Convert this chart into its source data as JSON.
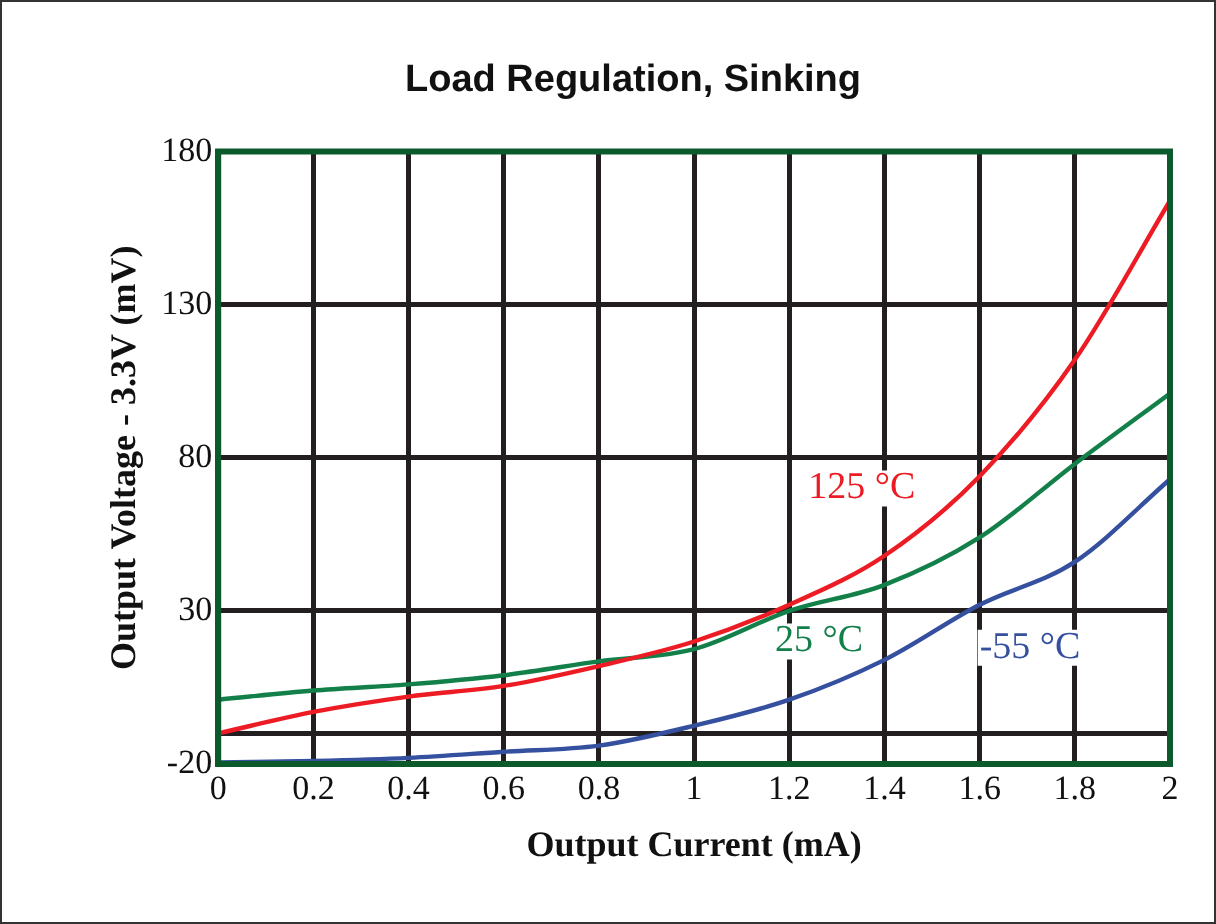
{
  "chart_data": {
    "type": "line",
    "title": "Load Regulation, Sinking",
    "xlabel": "Output Current (mA)",
    "ylabel": "Output Voltage - 3.3V (mV)",
    "x": [
      0,
      0.2,
      0.4,
      0.6,
      0.8,
      1.0,
      1.2,
      1.4,
      1.6,
      1.8,
      2.0
    ],
    "series": [
      {
        "name": "125 °C",
        "color": "#ed1c24",
        "values": [
          -10,
          -3,
          2,
          5.5,
          12,
          20,
          32,
          48,
          74,
          112,
          164
        ]
      },
      {
        "name": "25 °C",
        "color": "#13804a",
        "values": [
          1,
          4,
          6,
          9,
          13.5,
          17.5,
          30,
          38.5,
          54,
          78,
          101
        ]
      },
      {
        "name": "-55 °C",
        "color": "#3650a0",
        "values": [
          -19.5,
          -19,
          -18,
          -16,
          -14,
          -7.5,
          1,
          14,
          32,
          46,
          73
        ]
      }
    ],
    "xlim": [
      0,
      2
    ],
    "xticks": [
      0,
      0.2,
      0.4,
      0.6,
      0.8,
      1,
      1.2,
      1.4,
      1.6,
      1.8,
      2
    ],
    "ylim": [
      -20,
      180
    ],
    "yticks": [
      -20,
      {
        "value": -10,
        "label": null
      },
      30,
      80,
      130,
      180
    ],
    "grid": true,
    "legend": false,
    "marker": "none",
    "line_style": "solid"
  }
}
